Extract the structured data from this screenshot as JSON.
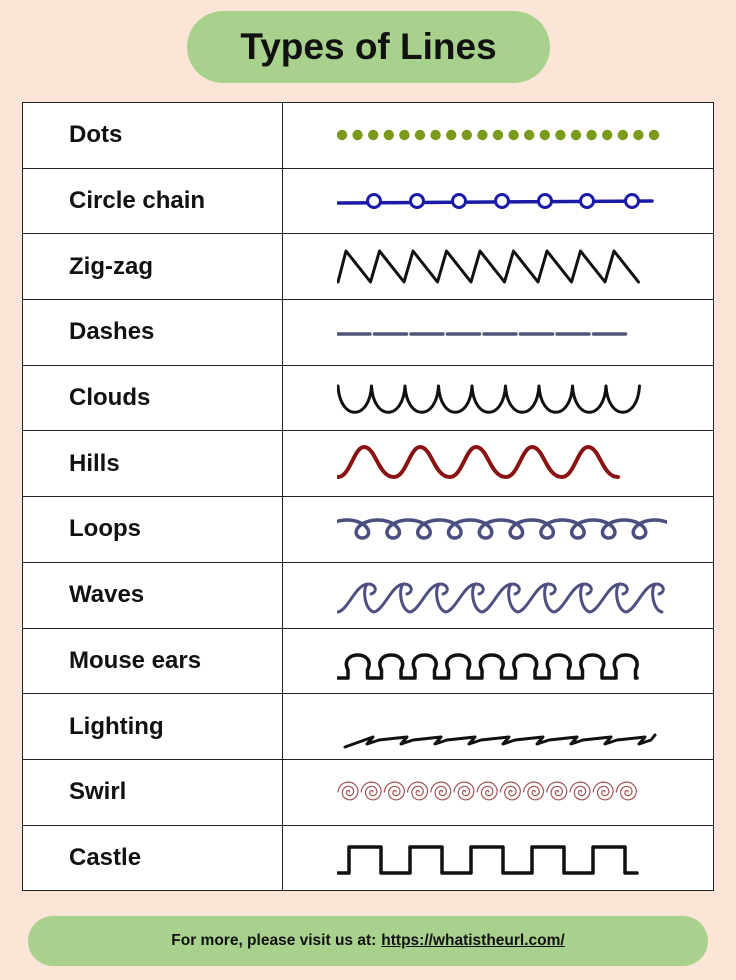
{
  "title": "Types of Lines",
  "rows": [
    {
      "name": "Dots",
      "pattern": "dots",
      "color": "#7a9a1c"
    },
    {
      "name": "Circle chain",
      "pattern": "circle-chain",
      "color": "#1a1aa8"
    },
    {
      "name": "Zig-zag",
      "pattern": "zigzag",
      "color": "#111111"
    },
    {
      "name": "Dashes",
      "pattern": "dashes",
      "color": "#4f5578"
    },
    {
      "name": "Clouds",
      "pattern": "clouds",
      "color": "#111111"
    },
    {
      "name": "Hills",
      "pattern": "hills",
      "color": "#8b1212"
    },
    {
      "name": "Loops",
      "pattern": "loops",
      "color": "#4a4f80"
    },
    {
      "name": "Waves",
      "pattern": "waves",
      "color": "#4d5080"
    },
    {
      "name": "Mouse ears",
      "pattern": "mouse-ears",
      "color": "#111111"
    },
    {
      "name": "Lighting",
      "pattern": "lighting",
      "color": "#111111"
    },
    {
      "name": "Swirl",
      "pattern": "swirl",
      "color": "#a05555"
    },
    {
      "name": "Castle",
      "pattern": "castle",
      "color": "#111111"
    }
  ],
  "footer": {
    "text": "For more, please visit us at:",
    "link": "https://whatistheurl.com/"
  },
  "colors": {
    "background": "#fbe5d6",
    "accent": "#a9d18e"
  }
}
